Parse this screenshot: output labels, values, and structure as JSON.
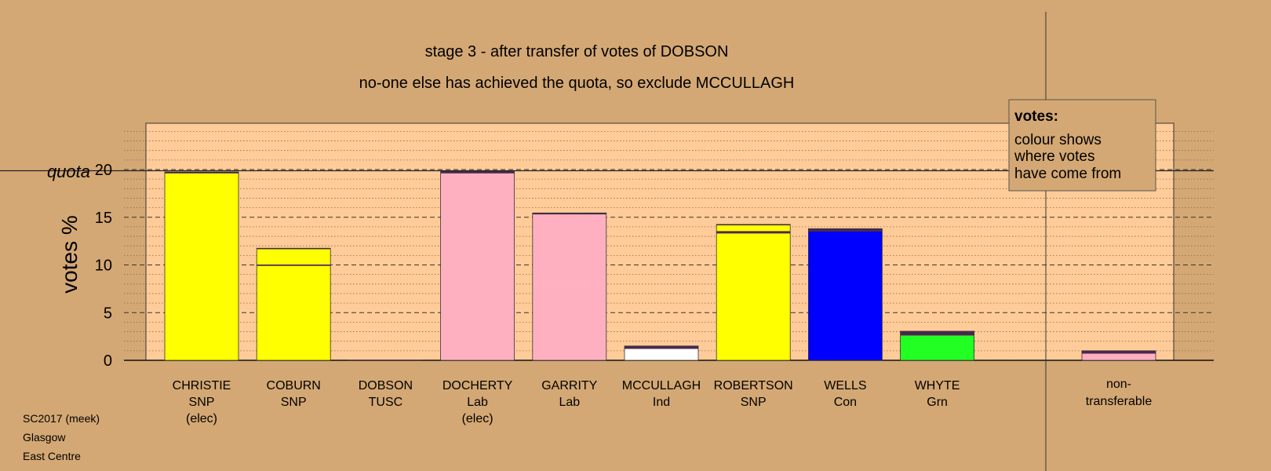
{
  "chart_data": {
    "type": "bar",
    "stacked": true,
    "title": "stage 3 - after transfer of votes of DOBSON",
    "subtitle": "no-one else has achieved the quota, so exclude MCCULLAGH",
    "ylabel": "votes %",
    "quota_label": "quota",
    "quota": 20,
    "ylim": [
      0,
      25
    ],
    "yticks": [
      0,
      5,
      10,
      15,
      20
    ],
    "grid": true,
    "legend": {
      "position": "top-right",
      "title": "votes:",
      "lines": [
        "colour shows",
        "where votes",
        "have come from"
      ]
    },
    "candidates": [
      {
        "name": "CHRISTIE",
        "party": "SNP",
        "status": "(elec)",
        "color": "#ffff00",
        "segments": [
          {
            "value": 19.6,
            "color": "#ffff00"
          },
          {
            "value": 0.15,
            "color": "#4a2750"
          }
        ]
      },
      {
        "name": "COBURN",
        "party": "SNP",
        "status": "",
        "color": "#ffff00",
        "segments": [
          {
            "value": 9.9,
            "color": "#ffff00"
          },
          {
            "value": 0.15,
            "color": "#4a2750"
          },
          {
            "value": 1.6,
            "color": "#ffff00"
          },
          {
            "value": 0.1,
            "color": "#4a2750"
          }
        ]
      },
      {
        "name": "DOBSON",
        "party": "TUSC",
        "status": "",
        "color": "#ff0000",
        "segments": [
          {
            "value": 0.05,
            "color": "#4a2750"
          }
        ]
      },
      {
        "name": "DOCHERTY",
        "party": "Lab",
        "status": "(elec)",
        "color": "#ffb0c0",
        "segments": [
          {
            "value": 19.6,
            "color": "#ffb0c0"
          },
          {
            "value": 0.2,
            "color": "#4a2750"
          }
        ]
      },
      {
        "name": "GARRITY",
        "party": "Lab",
        "status": "",
        "color": "#ffb0c0",
        "segments": [
          {
            "value": 8.1,
            "color": "#ffb0c0"
          },
          {
            "value": 7.2,
            "color": "#ffb0c0"
          },
          {
            "value": 0.15,
            "color": "#4a2750"
          }
        ]
      },
      {
        "name": "MCCULLAGH",
        "party": "Ind",
        "status": "",
        "color": "#ffffff",
        "segments": [
          {
            "value": 1.2,
            "color": "#ffffff"
          },
          {
            "value": 0.3,
            "color": "#4a2750"
          }
        ]
      },
      {
        "name": "ROBERTSON",
        "party": "SNP",
        "status": "",
        "color": "#ffff00",
        "segments": [
          {
            "value": 13.3,
            "color": "#ffff00"
          },
          {
            "value": 0.25,
            "color": "#4a2750"
          },
          {
            "value": 0.6,
            "color": "#ffff00"
          },
          {
            "value": 0.1,
            "color": "#4a2750"
          }
        ]
      },
      {
        "name": "WELLS",
        "party": "Con",
        "status": "",
        "color": "#0000ff",
        "segments": [
          {
            "value": 13.5,
            "color": "#0000ff"
          },
          {
            "value": 0.3,
            "color": "#4a2750"
          }
        ]
      },
      {
        "name": "WHYTE",
        "party": "Grn",
        "status": "",
        "color": "#22ff22",
        "segments": [
          {
            "value": 2.6,
            "color": "#22ff22"
          },
          {
            "value": 0.45,
            "color": "#4a2750"
          }
        ]
      }
    ],
    "non_transferable": {
      "label_line1": "non-",
      "label_line2": "transferable",
      "segments": [
        {
          "value": 0.7,
          "color": "#ffb0c0"
        },
        {
          "value": 0.3,
          "color": "#4a2750"
        }
      ]
    }
  },
  "footer": {
    "line1": "SC2017 (meek)",
    "line2": "Glasgow",
    "line3": "East Centre"
  }
}
